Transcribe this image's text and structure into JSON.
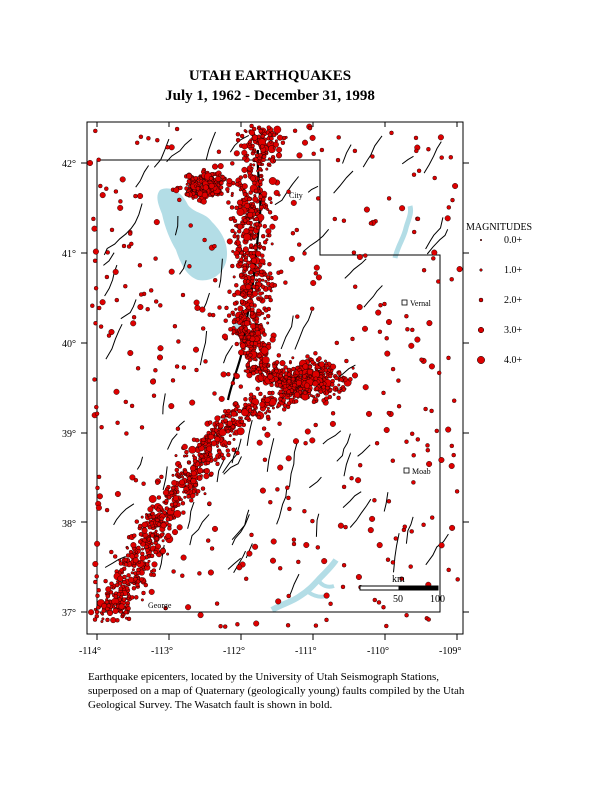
{
  "title": {
    "line1": "UTAH EARTHQUAKES",
    "line2": "July 1, 1962 - December 31, 1998"
  },
  "legend": {
    "heading": "MAGNITUDES",
    "items": [
      {
        "label": "0.0+",
        "magnitude": 0
      },
      {
        "label": "1.0+",
        "magnitude": 1
      },
      {
        "label": "2.0+",
        "magnitude": 2
      },
      {
        "label": "3.0+",
        "magnitude": 3
      },
      {
        "label": "4.0+",
        "magnitude": 4
      }
    ]
  },
  "axes": {
    "longitude_ticks": [
      "-114°",
      "-113°",
      "-112°",
      "-111°",
      "-110°",
      "-109°"
    ],
    "latitude_ticks": [
      "42°",
      "41°",
      "40°",
      "39°",
      "38°",
      "37°"
    ]
  },
  "scale_bar": {
    "unit": "km",
    "labels": [
      "50",
      "100"
    ]
  },
  "places": [
    "City",
    "Vernal",
    "Moab",
    "George"
  ],
  "colors": {
    "epicenter": "#dd0000",
    "epicenter_outline": "#000000",
    "water": "#b3dde6",
    "fault": "#000000",
    "border": "#000000"
  },
  "caption": "Earthquake epicenters, located by the University of Utah Seismograph Stations, superposed on a map of Quaternary (geologically young) faults compiled by the Utah Geological Survey. The Wasatch fault is shown in bold."
}
